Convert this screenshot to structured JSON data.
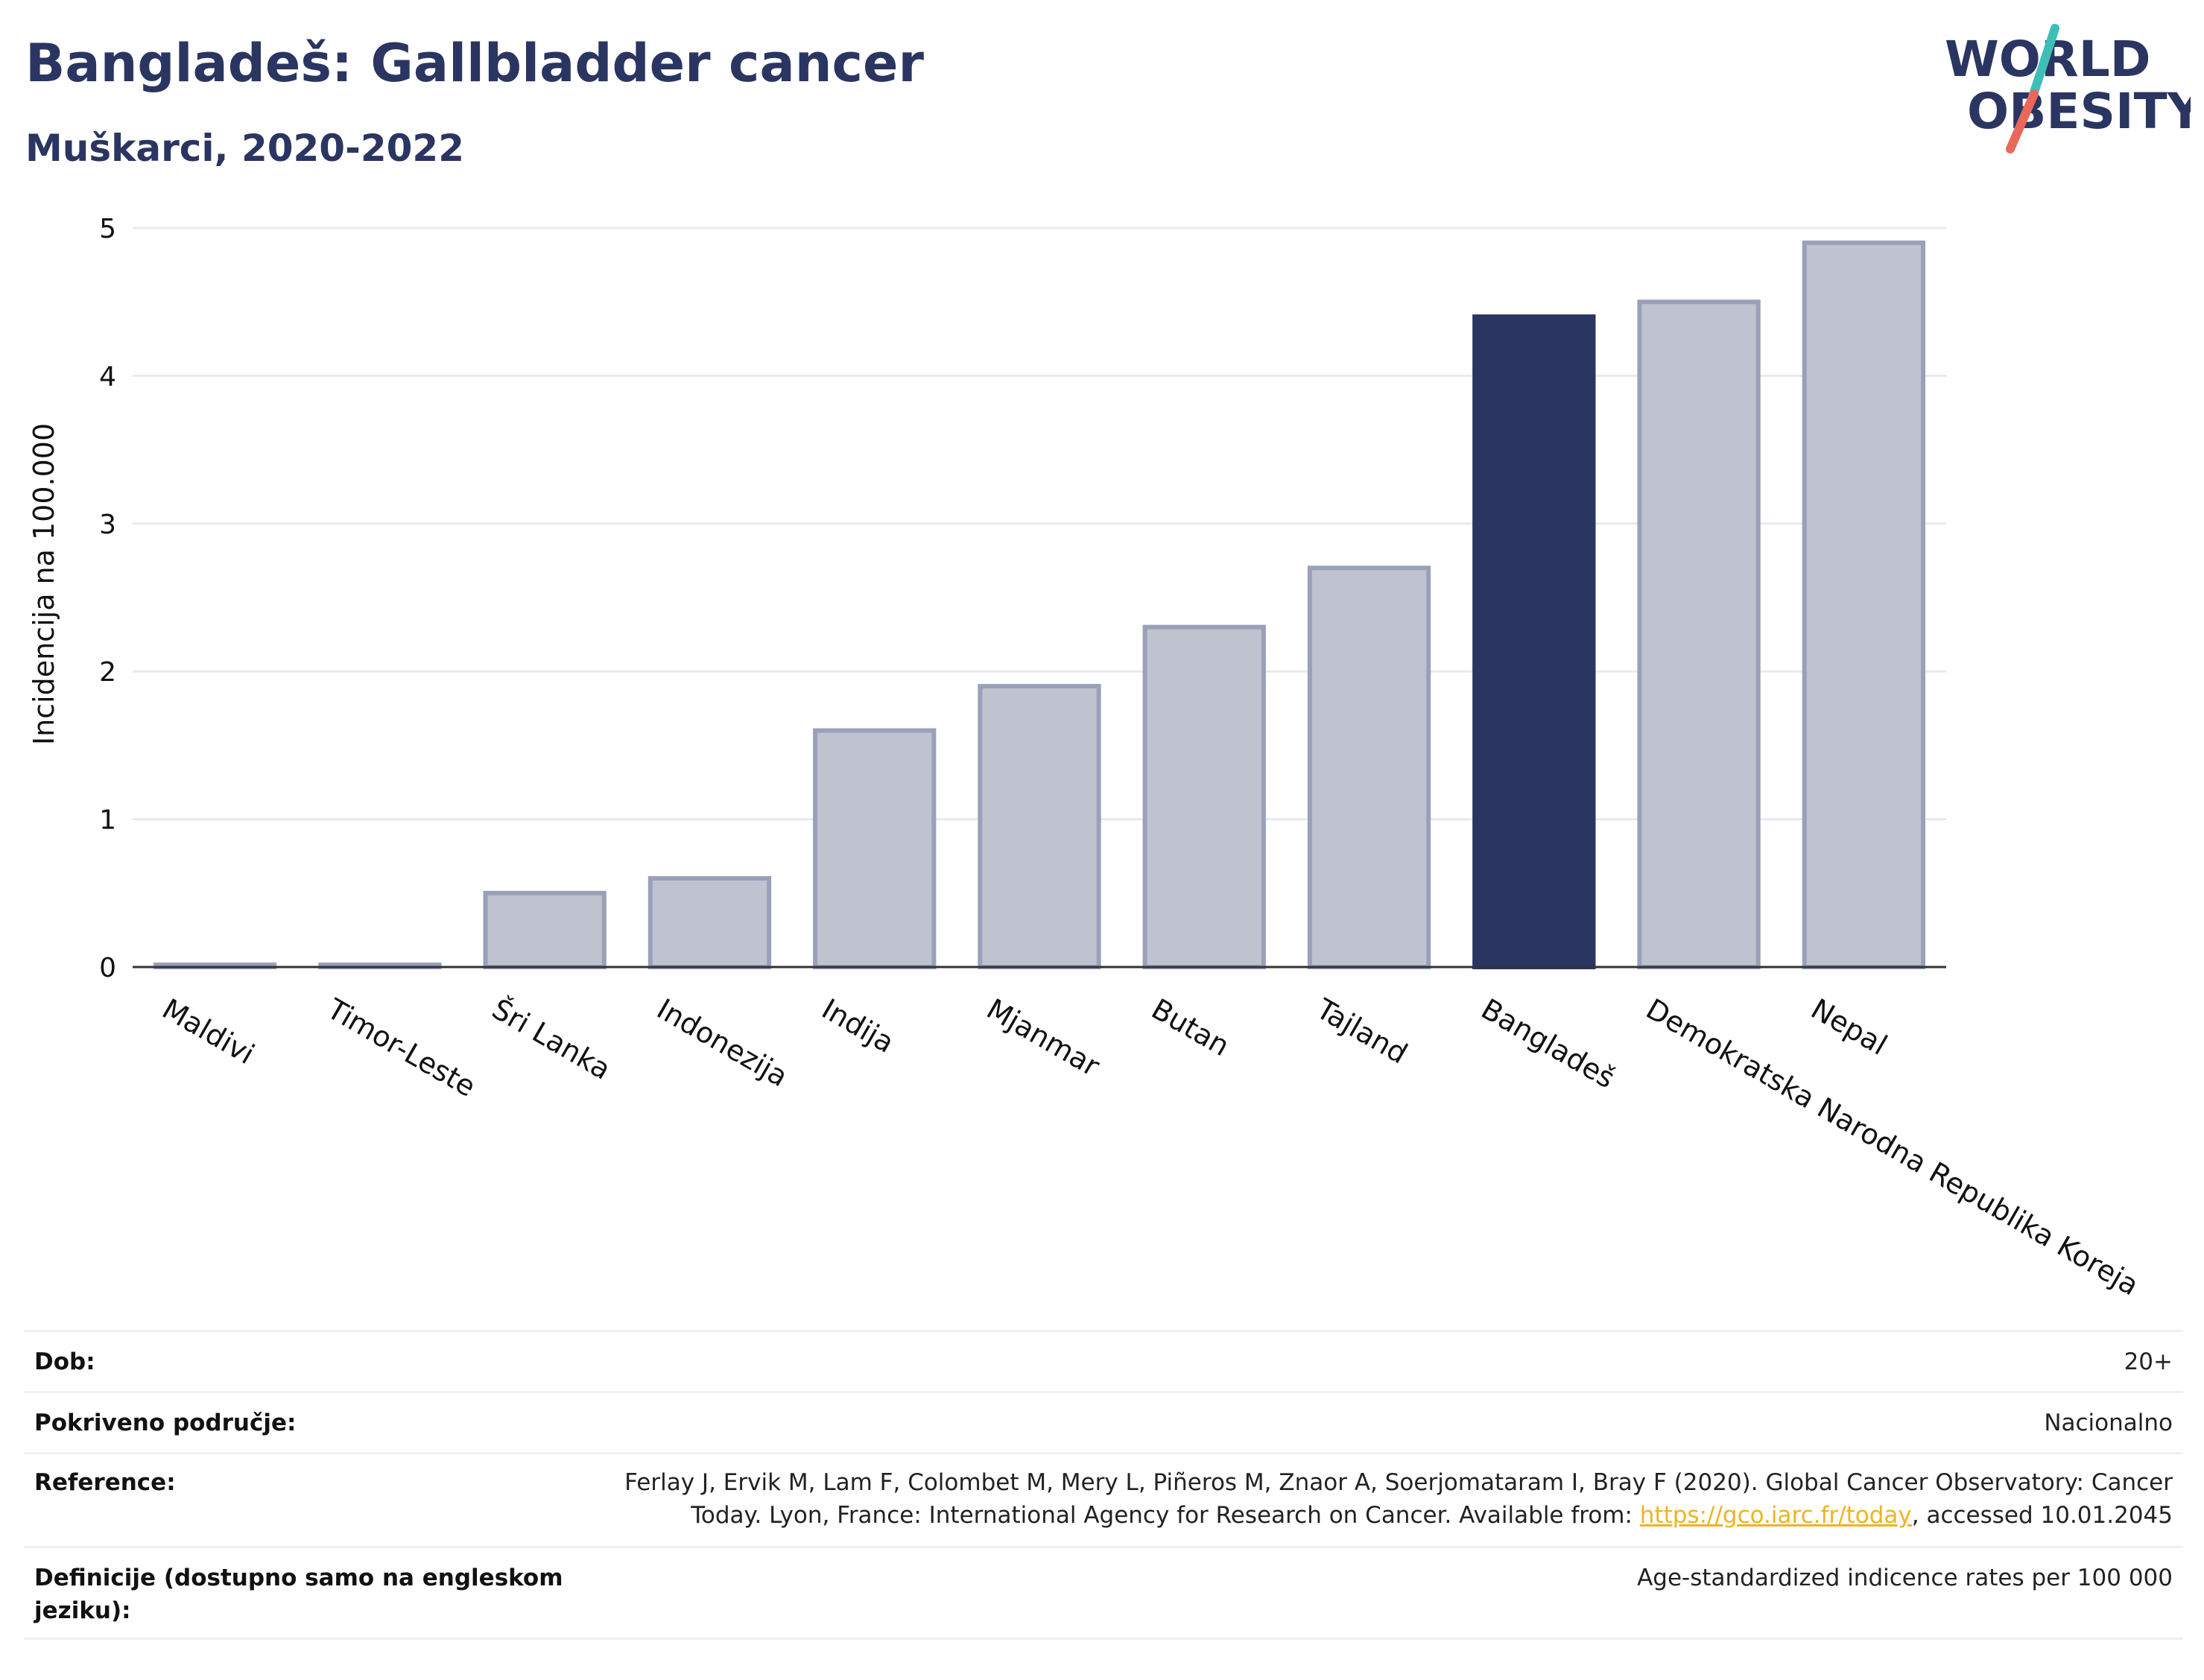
{
  "header": {
    "title": "Bangladeš: Gallbladder cancer",
    "subtitle": "Muškarci, 2020-2022"
  },
  "logo": {
    "line1": "WORLD",
    "line2": "OBESITY",
    "colors": {
      "text": "#2b3561",
      "slash_top": "#3dbfb8",
      "slash_bottom": "#e8685a"
    }
  },
  "chart_data": {
    "type": "bar",
    "ylabel": "Incidencija na 100.000",
    "xlabel": "",
    "ylim": [
      0,
      5
    ],
    "yticks": [
      "0",
      "1",
      "2",
      "3",
      "4",
      "5"
    ],
    "grid": true,
    "highlight": "Bangladeš",
    "colors": {
      "highlight": "#2b3561",
      "default_fill": "#bfc3d0",
      "default_stroke": "#9aa0b8"
    },
    "categories": [
      "Maldivi",
      "Timor-Leste",
      "Šri Lanka",
      "Indonezija",
      "Indija",
      "Mjanmar",
      "Butan",
      "Tajland",
      "Bangladeš",
      "Demokratska Narodna Republika Koreja",
      "Nepal"
    ],
    "values": [
      0.0,
      0.0,
      0.5,
      0.6,
      1.6,
      1.9,
      2.3,
      2.7,
      4.4,
      4.5,
      4.9
    ]
  },
  "meta": {
    "rows": [
      {
        "label": "Dob:",
        "value": "20+"
      },
      {
        "label": "Pokriveno područje:",
        "value": "Nacionalno"
      },
      {
        "label": "Reference:",
        "value_line1": "Ferlay J, Ervik M, Lam F, Colombet M, Mery L, Piñeros M, Znaor A, Soerjomataram I, Bray F (2020). Global Cancer Observatory: Cancer",
        "value_line2_pre": "Today. Lyon, France: International Agency for Research on Cancer. Available from: ",
        "link": "https://gco.iarc.fr/today",
        "value_line2_post": ", accessed 10.01.2045"
      },
      {
        "label_line1": "Definicije (dostupno samo na engleskom",
        "label_line2": "jeziku):",
        "value": "Age-standardized indicence rates per 100 000"
      }
    ]
  }
}
